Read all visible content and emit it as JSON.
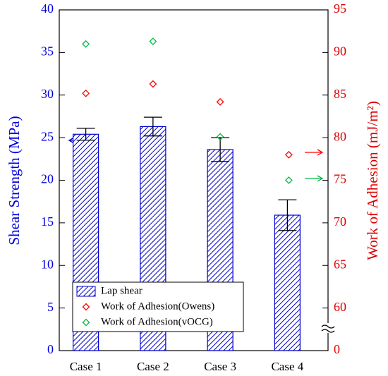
{
  "chart_data": {
    "type": "bar",
    "categories": [
      "Case 1",
      "Case 2",
      "Case 3",
      "Case 4"
    ],
    "ylabel": "Shear Strength (MPa)",
    "y2label": "Work of Adhesion (mJ/m²)",
    "ylim": [
      0,
      40
    ],
    "yticks": [
      0,
      5,
      10,
      15,
      20,
      25,
      30,
      35,
      40
    ],
    "y2lim": [
      0,
      95
    ],
    "y2break": [
      0,
      55
    ],
    "y2ticks": [
      0,
      60,
      65,
      70,
      75,
      80,
      85,
      90,
      95
    ],
    "legend": "lower left",
    "series": [
      {
        "name": "Lap shear",
        "type": "bar",
        "color": "#0000cc",
        "values": [
          25.4,
          26.3,
          23.6,
          15.9
        ],
        "errors": [
          0.7,
          1.1,
          1.4,
          1.8
        ]
      },
      {
        "name": "Work of Adhesion(Owens)",
        "type": "scatter",
        "axis": "y2",
        "color": "#ff0000",
        "values": [
          85.2,
          86.3,
          84.2,
          78
        ]
      },
      {
        "name": "Work of Adhesion(vOCG)",
        "type": "scatter",
        "axis": "y2",
        "color": "#00bb44",
        "values": [
          91.0,
          91.3,
          80.1,
          75
        ]
      }
    ]
  }
}
